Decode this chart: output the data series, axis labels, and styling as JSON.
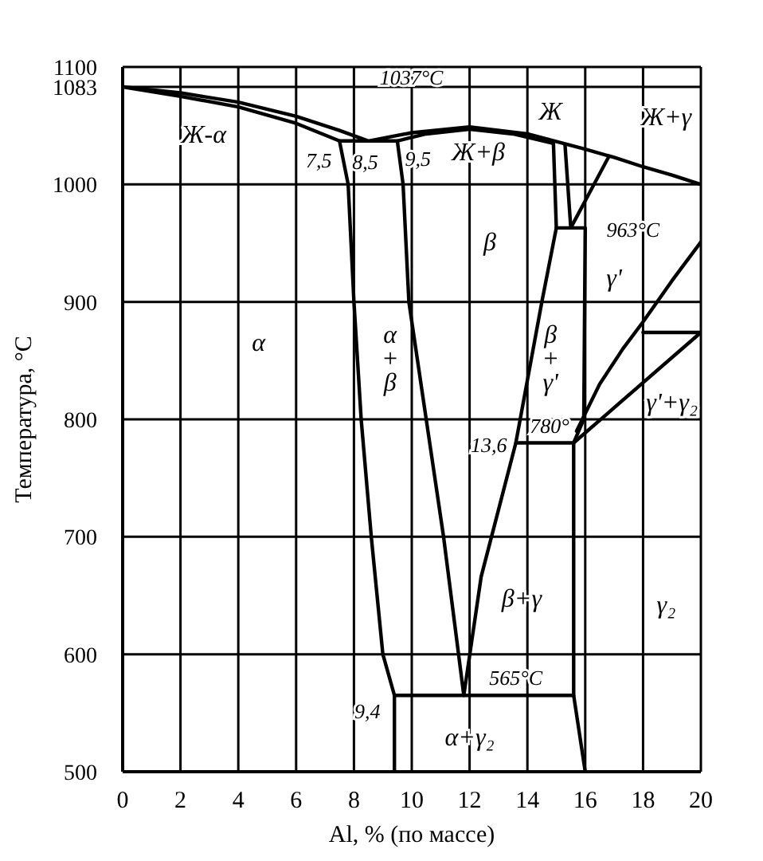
{
  "chart_data": {
    "type": "line",
    "xlabel": "Al, % (по массе)",
    "ylabel": "Температура, °C",
    "xlim": [
      0,
      20
    ],
    "ylim": [
      500,
      1100
    ],
    "xticks": [
      0,
      2,
      4,
      6,
      8,
      10,
      12,
      14,
      16,
      18,
      20
    ],
    "yticks": [
      500,
      600,
      700,
      800,
      900,
      1000,
      1083,
      1100
    ],
    "grid": true,
    "marker": "none",
    "line_style": "solid",
    "series": [
      {
        "color": "#000000",
        "x": [
          14.9,
          13.5,
          12,
          10.5,
          9.5,
          7.5,
          6,
          4,
          2,
          0,
          2,
          4,
          6,
          7.5,
          8.5,
          10,
          12,
          14,
          16,
          17,
          18,
          19,
          20
        ],
        "values": [
          1035,
          1043,
          1047,
          1043,
          1037,
          1037,
          1052,
          1066,
          1075,
          1083,
          1078,
          1070,
          1058,
          1046,
          1037,
          1044,
          1049,
          1043,
          1030,
          1023,
          1015,
          1008,
          1000
        ]
      },
      {
        "color": "#000000",
        "x": [
          7.5,
          7.8,
          8,
          8.25,
          8.6,
          9,
          9.4,
          9.4
        ],
        "values": [
          1037,
          1000,
          900,
          800,
          700,
          600,
          565,
          500
        ]
      },
      {
        "color": "#000000",
        "x": [
          9.5,
          9.7,
          9.9,
          10.5,
          11.1,
          11.8,
          12.4,
          13.6,
          14.5,
          15,
          14.9
        ],
        "values": [
          1037,
          1000,
          900,
          800,
          700,
          565,
          666,
          780,
          900,
          963,
          1035
        ]
      },
      {
        "color": "#000000",
        "x": [
          9.4,
          15.6
        ],
        "values": [
          565,
          565
        ]
      },
      {
        "color": "#000000",
        "x": [
          13.6,
          15.6,
          20,
          18
        ],
        "values": [
          780,
          780,
          874,
          874
        ]
      },
      {
        "color": "#000000",
        "x": [
          15,
          16,
          15.95,
          15.6,
          15.6,
          16
        ],
        "values": [
          963,
          963,
          800,
          780,
          565,
          500
        ]
      },
      {
        "color": "#000000",
        "x": [
          15.3,
          15.5,
          16.8
        ],
        "values": [
          1034,
          963,
          1023
        ]
      },
      {
        "color": "#000000",
        "x": [
          15.7,
          16.5,
          17.3,
          18,
          19,
          20
        ],
        "values": [
          790,
          830,
          860,
          883,
          918,
          951
        ]
      }
    ],
    "annotations": [
      "Ж-α",
      {
        "text": "7,5",
        "x": 7.5,
        "y": 1037
      },
      {
        "text": "8,5",
        "x": 8.5,
        "y": 1037
      },
      {
        "text": "1037°C",
        "x": 8.5,
        "y": 1037
      },
      {
        "text": "9,5",
        "x": 9.5,
        "y": 1037
      },
      "Ж+β",
      "Ж",
      "Ж+γ",
      "β",
      {
        "text": "963°C",
        "x": 16,
        "y": 963
      },
      "γ'",
      "α",
      "α\n+\nβ",
      "β\n+\nγ'",
      "γ'+γ₂",
      {
        "text": "13,6",
        "x": 13.6,
        "y": 780
      },
      {
        "text": "780°",
        "x": 14.6,
        "y": 780
      },
      "β+γ",
      "γ₂",
      {
        "text": "9,4",
        "x": 9.4,
        "y": 565
      },
      {
        "text": "565°C",
        "x": 13.6,
        "y": 565
      },
      "α+γ₂"
    ]
  }
}
